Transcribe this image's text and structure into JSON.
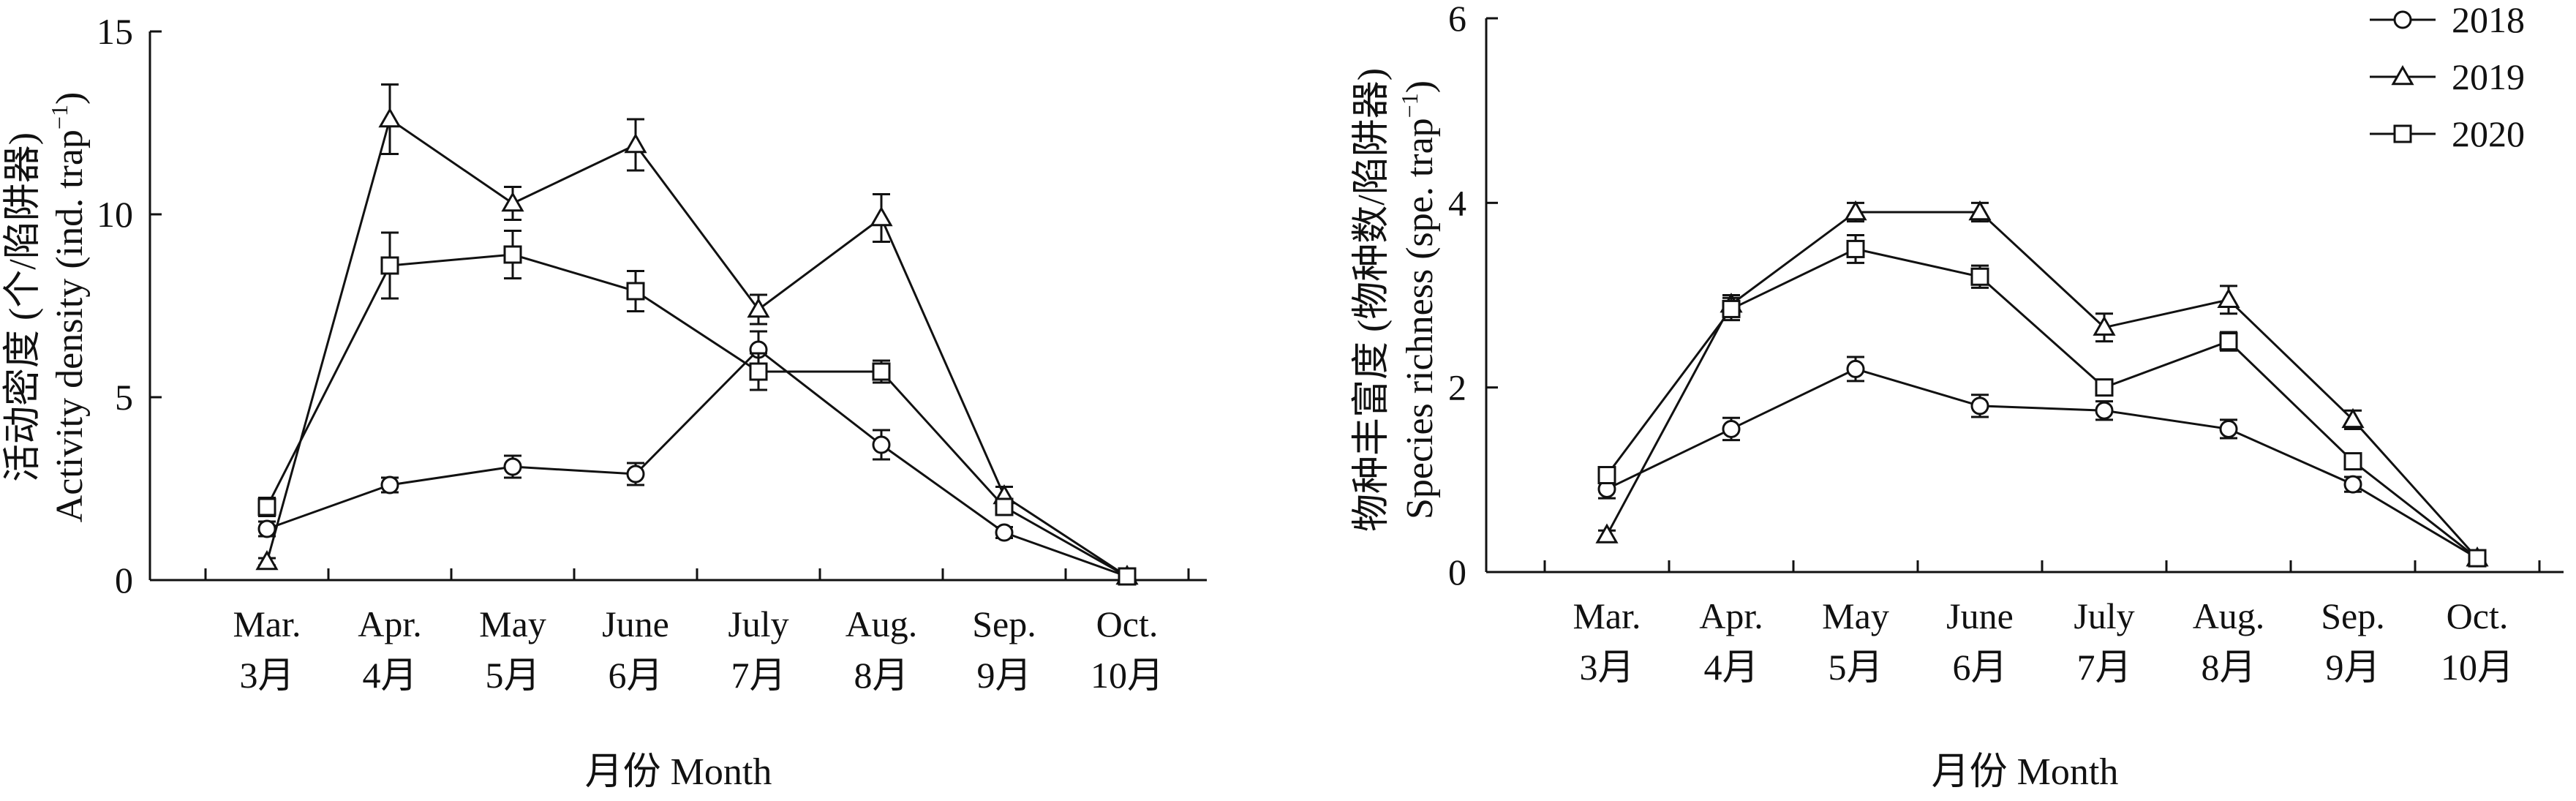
{
  "chart_data": [
    {
      "type": "line",
      "categories": [
        "Mar.",
        "Apr.",
        "May",
        "June",
        "July",
        "Aug.",
        "Sep.",
        "Oct."
      ],
      "categories_zh": [
        "3月",
        "4月",
        "5月",
        "6月",
        "7月",
        "8月",
        "9月",
        "10月"
      ],
      "xlabel": "月份 Month",
      "ylabel_zh": "活动密度 (个/陷阱器)",
      "ylabel_en": "Activity density (ind. trap",
      "ylabel_sup": "−1",
      "ylabel_close": ")",
      "ylim": [
        0,
        15
      ],
      "yticks": [
        "0",
        "5",
        "10",
        "15"
      ],
      "grid": false,
      "series": [
        {
          "name": "2018",
          "marker": "circle",
          "values": [
            1.4,
            2.6,
            3.1,
            2.9,
            6.3,
            3.7,
            1.3,
            0.1
          ],
          "errors": [
            0.2,
            0.2,
            0.3,
            0.3,
            0.5,
            0.4,
            0.15,
            0.05
          ]
        },
        {
          "name": "2019",
          "marker": "triangle",
          "values": [
            0.5,
            12.6,
            10.3,
            11.9,
            7.4,
            9.9,
            2.3,
            0.1
          ],
          "errors": [
            0.1,
            0.95,
            0.45,
            0.7,
            0.4,
            0.65,
            0.25,
            0.05
          ]
        },
        {
          "name": "2020",
          "marker": "square",
          "values": [
            2.0,
            8.6,
            8.9,
            7.9,
            5.7,
            5.7,
            2.0,
            0.1
          ],
          "errors": [
            0.25,
            0.9,
            0.65,
            0.55,
            0.5,
            0.3,
            0.2,
            0.05
          ]
        }
      ]
    },
    {
      "type": "line",
      "categories": [
        "Mar.",
        "Apr.",
        "May",
        "June",
        "July",
        "Aug.",
        "Sep.",
        "Oct."
      ],
      "categories_zh": [
        "3月",
        "4月",
        "5月",
        "6月",
        "7月",
        "8月",
        "9月",
        "10月"
      ],
      "xlabel": "月份 Month",
      "ylabel_zh": "物种丰富度 (物种数/陷阱器)",
      "ylabel_en": "Species richness (spe. trap",
      "ylabel_sup": "−1",
      "ylabel_close": ")",
      "ylim": [
        0,
        6
      ],
      "yticks": [
        "0",
        "2",
        "4",
        "6"
      ],
      "grid": false,
      "legend_position": "top-right",
      "series": [
        {
          "name": "2018",
          "marker": "circle",
          "values": [
            0.9,
            1.55,
            2.2,
            1.8,
            1.75,
            1.55,
            0.95,
            0.15
          ],
          "errors": [
            0.1,
            0.12,
            0.13,
            0.12,
            0.1,
            0.1,
            0.08,
            0.03
          ]
        },
        {
          "name": "2019",
          "marker": "triangle",
          "values": [
            0.4,
            2.9,
            3.9,
            3.9,
            2.65,
            2.95,
            1.65,
            0.15
          ],
          "errors": [
            0.05,
            0.1,
            0.1,
            0.1,
            0.15,
            0.15,
            0.1,
            0.03
          ]
        },
        {
          "name": "2020",
          "marker": "square",
          "values": [
            1.05,
            2.85,
            3.5,
            3.2,
            2.0,
            2.5,
            1.2,
            0.15
          ],
          "errors": [
            0.08,
            0.12,
            0.15,
            0.12,
            0.08,
            0.1,
            0.08,
            0.03
          ]
        }
      ]
    }
  ]
}
